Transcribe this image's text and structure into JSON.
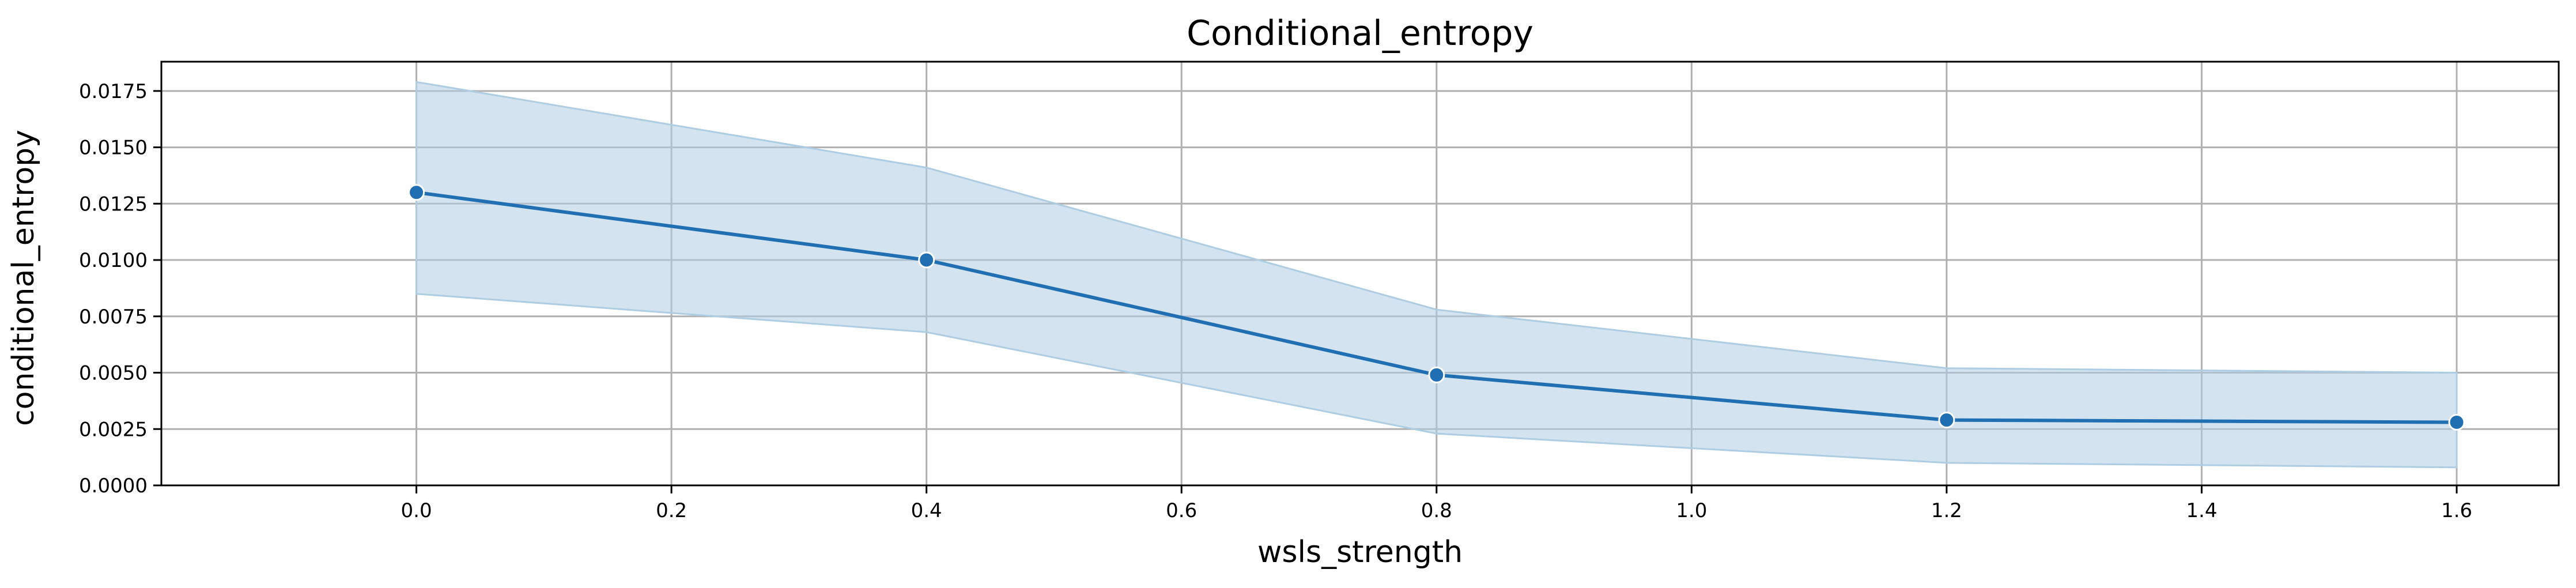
{
  "chart_data": {
    "type": "line",
    "title": "Conditional_entropy",
    "xlabel": "wsls_strength",
    "ylabel": "conditional_entropy",
    "xlim": [
      -0.2,
      1.68
    ],
    "ylim": [
      0,
      0.0188
    ],
    "x_ticks": [
      "0.0",
      "0.2",
      "0.4",
      "0.6",
      "0.8",
      "1.0",
      "1.2",
      "1.4",
      "1.6"
    ],
    "y_ticks": [
      "0.0000",
      "0.0025",
      "0.0050",
      "0.0075",
      "0.0100",
      "0.0125",
      "0.0150",
      "0.0175"
    ],
    "grid": true,
    "series": [
      {
        "x": [
          0.0,
          0.4,
          0.8,
          1.2,
          1.6
        ],
        "y": [
          0.013,
          0.01,
          0.0049,
          0.0029,
          0.0028
        ],
        "ci_lower": [
          0.0085,
          0.0068,
          0.0023,
          0.001,
          0.0008
        ],
        "ci_upper": [
          0.0179,
          0.0141,
          0.0078,
          0.0052,
          0.005
        ]
      }
    ],
    "colors": {
      "line": "#1f6fb2",
      "band": "#aecde3",
      "marker_edge": "#ffffff"
    }
  }
}
